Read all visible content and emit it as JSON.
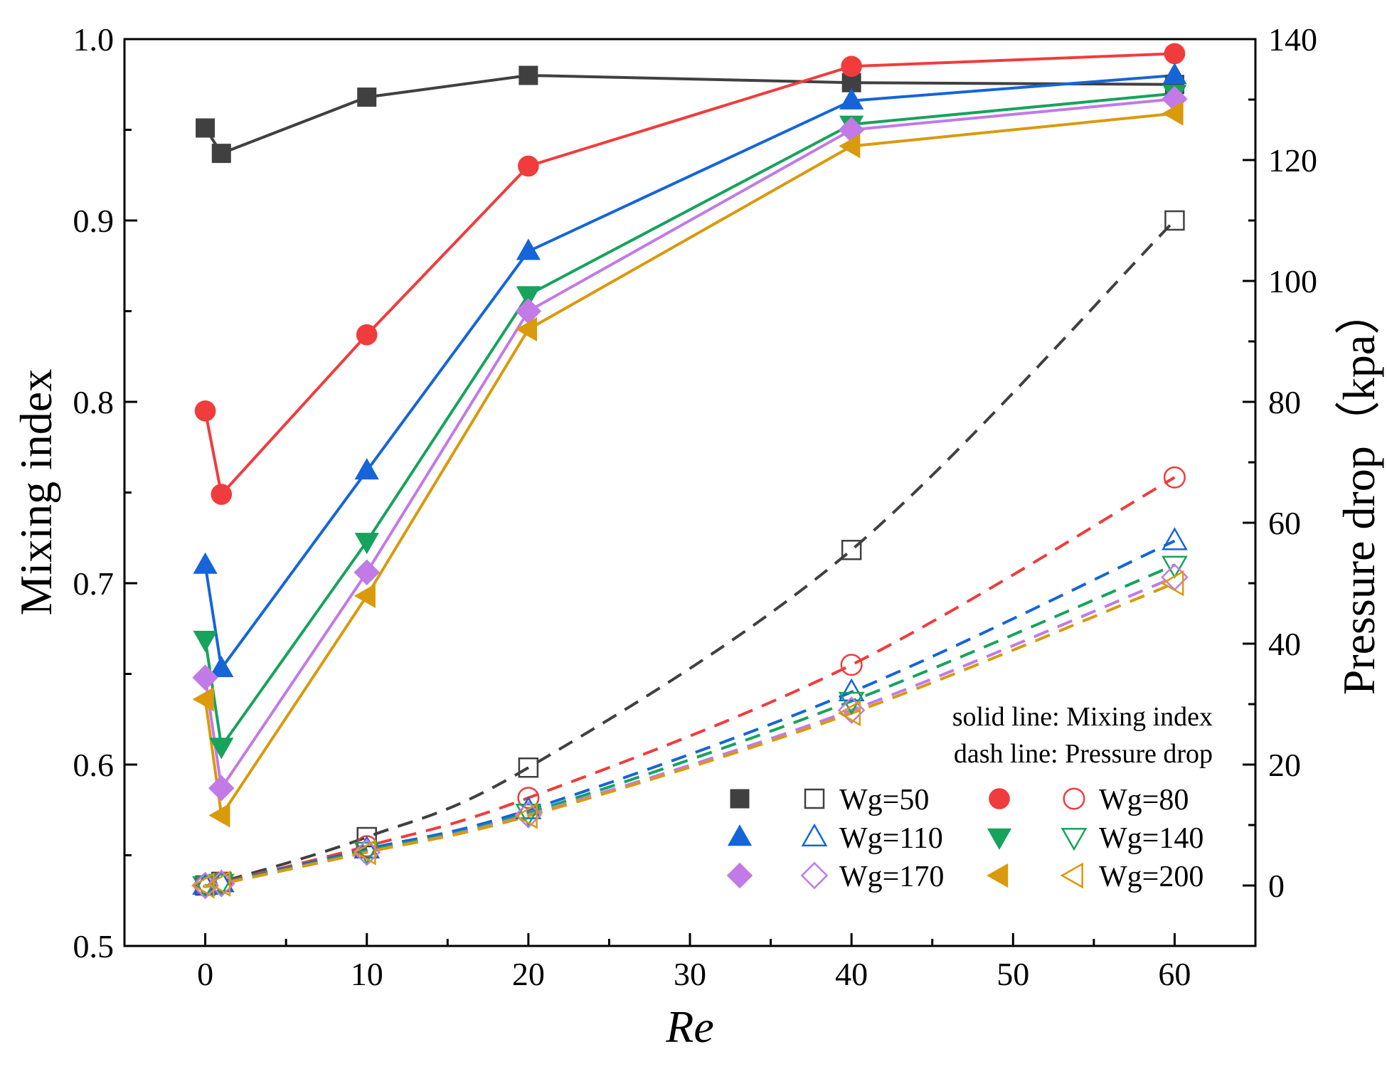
{
  "chart_data": {
    "type": "line",
    "xlabel": "Re",
    "ylabel": "Mixing index",
    "y2label": "Pressure drop（kpa）",
    "xlim": [
      -5,
      65
    ],
    "ylim": [
      0.5,
      1.0
    ],
    "y2lim": [
      -10,
      140
    ],
    "x_ticks": [
      "0",
      "10",
      "20",
      "30",
      "40",
      "50",
      "60"
    ],
    "y_ticks": [
      "0.5",
      "0.6",
      "0.7",
      "0.8",
      "0.9",
      "1.0"
    ],
    "y2_ticks": [
      "0",
      "20",
      "40",
      "60",
      "80",
      "100",
      "120",
      "140"
    ],
    "notes": [
      "solid line: Mixing index",
      "dash line: Pressure drop"
    ],
    "x": [
      0,
      1,
      10,
      20,
      40,
      60
    ],
    "series": [
      {
        "name": "Wg=50",
        "color": "#404040",
        "marker": "square",
        "mixing_index": [
          0.951,
          0.937,
          0.968,
          0.98,
          0.976,
          0.975
        ],
        "pressure_drop": [
          0,
          0.6,
          8,
          19.5,
          55.5,
          110
        ]
      },
      {
        "name": "Wg=80",
        "color": "#f03c3c",
        "marker": "circle",
        "mixing_index": [
          0.795,
          0.749,
          0.837,
          0.93,
          0.985,
          0.992
        ],
        "pressure_drop": [
          0,
          0.5,
          6.5,
          14.5,
          36.5,
          67.5
        ]
      },
      {
        "name": "Wg=110",
        "color": "#1565d8",
        "marker": "triangle-up",
        "mixing_index": [
          0.71,
          0.653,
          0.762,
          0.883,
          0.966,
          0.98
        ],
        "pressure_drop": [
          0,
          0.4,
          6,
          12.5,
          32,
          57
        ]
      },
      {
        "name": "Wg=140",
        "color": "#17a35c",
        "marker": "triangle-down",
        "mixing_index": [
          0.669,
          0.61,
          0.723,
          0.859,
          0.953,
          0.97
        ],
        "pressure_drop": [
          0,
          0.4,
          5.7,
          12,
          30.5,
          53
        ]
      },
      {
        "name": "Wg=170",
        "color": "#c27ae6",
        "marker": "diamond",
        "mixing_index": [
          0.648,
          0.587,
          0.706,
          0.85,
          0.95,
          0.967
        ],
        "pressure_drop": [
          0,
          0.3,
          5.5,
          11.7,
          29,
          51
        ]
      },
      {
        "name": "Wg=200",
        "color": "#d99a0c",
        "marker": "triangle-left",
        "mixing_index": [
          0.636,
          0.572,
          0.693,
          0.84,
          0.941,
          0.959
        ],
        "pressure_drop": [
          0,
          0.3,
          5.5,
          11.5,
          28.5,
          50
        ]
      }
    ]
  }
}
